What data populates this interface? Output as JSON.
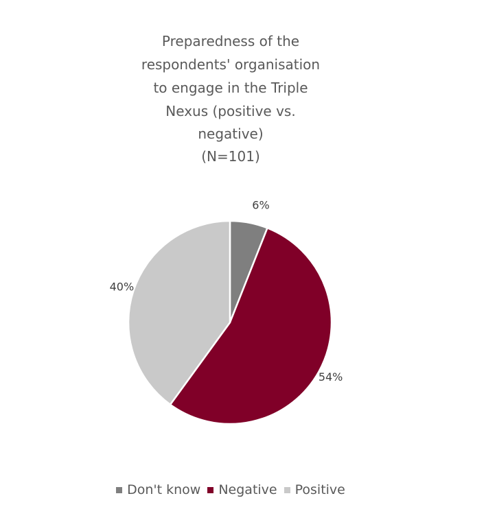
{
  "chart_data": {
    "type": "pie",
    "title_lines": [
      "Preparedness of the",
      "respondents' organisation",
      "to engage in the Triple",
      "Nexus (positive vs.",
      "negative)",
      "(N=101)"
    ],
    "categories": [
      "Don't know",
      "Negative",
      "Positive"
    ],
    "values": [
      6,
      54,
      40
    ],
    "data_labels": [
      "6%",
      "54%",
      "40%"
    ],
    "colors": [
      "#7f7f7f",
      "#800028",
      "#c9c9c9"
    ],
    "legend_position": "bottom",
    "start_angle": "12 o'clock, clockwise"
  }
}
